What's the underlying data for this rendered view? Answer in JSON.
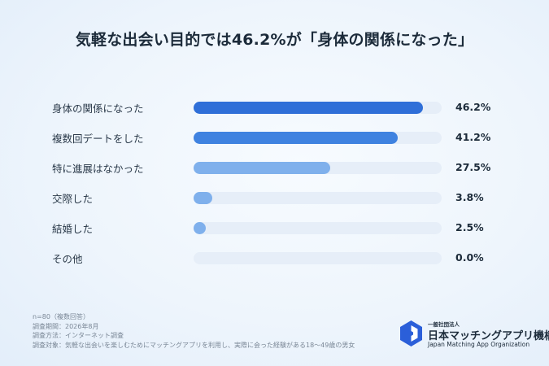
{
  "title": "気軽な出会い目的では46.2%が「身体の関係になった」",
  "chart_data": {
    "type": "bar",
    "orientation": "horizontal",
    "categories": [
      "身体の関係になった",
      "複数回デートをした",
      "特に進展はなかった",
      "交際した",
      "結婚した",
      "その他"
    ],
    "values": [
      46.2,
      41.2,
      27.5,
      3.8,
      2.5,
      0.0
    ],
    "value_labels": [
      "46.2%",
      "41.2%",
      "27.5%",
      "3.8%",
      "2.5%",
      "0.0%"
    ],
    "unit": "%",
    "xlim": [
      0,
      50
    ],
    "bar_colors": [
      "#2f6fd8",
      "#3f82e0",
      "#7fb0ec",
      "#7fb0ec",
      "#7fb0ec",
      "#7fb0ec"
    ],
    "track_color": "#e6eef8",
    "grid": false
  },
  "notes": [
    "n=80（複数回答）",
    "調査期間：2026年8月",
    "調査方法：インターネット調査",
    "調査対象：気軽な出会いを楽しむためにマッチングアプリを利用し、実際に会った経験がある18〜49歳の男女"
  ],
  "logo": {
    "small": "一般社団法人",
    "name": "日本マッチングアプリ機構",
    "en": "Japan Matching App Organization",
    "color": "#2b5fd9"
  }
}
